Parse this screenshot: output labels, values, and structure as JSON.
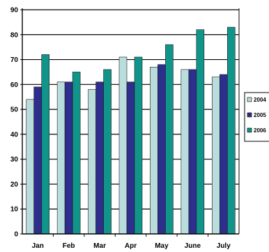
{
  "chart_data": {
    "type": "bar",
    "categories": [
      "Jan",
      "Feb",
      "Mar",
      "Apr",
      "May",
      "June",
      "July"
    ],
    "series": [
      {
        "name": "2004",
        "values": [
          54,
          61,
          58,
          71,
          67,
          66,
          63
        ],
        "color": "#b9dcdc"
      },
      {
        "name": "2005",
        "values": [
          59,
          61,
          61,
          61,
          68,
          66,
          64
        ],
        "color": "#2e2e8c"
      },
      {
        "name": "2006",
        "values": [
          72,
          65,
          66,
          71,
          76,
          82,
          83
        ],
        "color": "#11958a"
      }
    ],
    "ylim": [
      0,
      90
    ],
    "yticks": [
      0,
      10,
      20,
      30,
      40,
      50,
      60,
      70,
      80,
      90
    ],
    "grid": true,
    "legend_position": "right",
    "title": "",
    "xlabel": "",
    "ylabel": ""
  }
}
